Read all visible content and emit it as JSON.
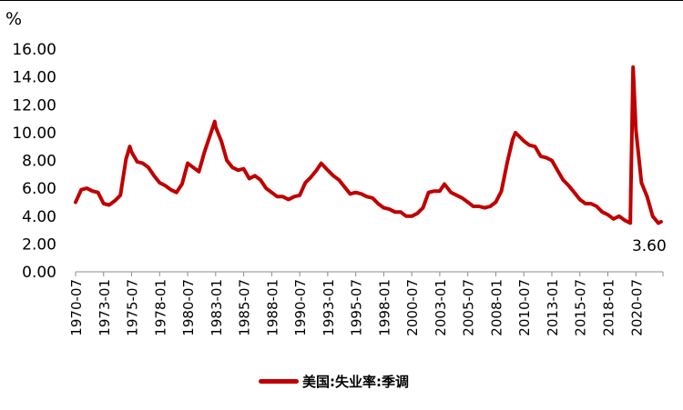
{
  "chart_data": {
    "type": "line",
    "unit_label": "%",
    "ylim": [
      0,
      16
    ],
    "y_ticks": [
      "0.00",
      "2.00",
      "4.00",
      "6.00",
      "8.00",
      "10.00",
      "12.00",
      "14.00",
      "16.00"
    ],
    "x_ticks": [
      "1970-07",
      "1973-01",
      "1975-07",
      "1978-01",
      "1980-07",
      "1983-01",
      "1985-07",
      "1988-01",
      "1990-07",
      "1993-01",
      "1995-07",
      "1998-01",
      "2000-07",
      "2003-01",
      "2005-07",
      "2008-01",
      "2010-07",
      "2013-01",
      "2015-07",
      "2018-01",
      "2020-07"
    ],
    "grid": false,
    "legend_position": "bottom",
    "series": [
      {
        "name": "美国:失业率:季调",
        "color": "#C00000",
        "x": [
          "1970-07",
          "1971-01",
          "1971-07",
          "1972-01",
          "1972-07",
          "1973-01",
          "1973-07",
          "1974-01",
          "1974-07",
          "1975-01",
          "1975-05",
          "1975-07",
          "1976-01",
          "1976-07",
          "1977-01",
          "1977-07",
          "1978-01",
          "1978-07",
          "1979-01",
          "1979-07",
          "1980-01",
          "1980-07",
          "1981-01",
          "1981-07",
          "1982-01",
          "1982-07",
          "1982-12",
          "1983-01",
          "1983-07",
          "1984-01",
          "1984-07",
          "1985-01",
          "1985-07",
          "1986-01",
          "1986-07",
          "1987-01",
          "1987-07",
          "1988-01",
          "1988-07",
          "1989-01",
          "1989-07",
          "1990-01",
          "1990-07",
          "1991-01",
          "1991-07",
          "1992-01",
          "1992-06",
          "1993-01",
          "1993-07",
          "1994-01",
          "1994-07",
          "1995-01",
          "1995-07",
          "1996-01",
          "1996-07",
          "1997-01",
          "1997-07",
          "1998-01",
          "1998-07",
          "1999-01",
          "1999-07",
          "2000-01",
          "2000-07",
          "2001-01",
          "2001-07",
          "2002-01",
          "2002-07",
          "2003-01",
          "2003-06",
          "2004-01",
          "2004-07",
          "2005-01",
          "2005-07",
          "2006-01",
          "2006-07",
          "2007-01",
          "2007-07",
          "2008-01",
          "2008-07",
          "2009-01",
          "2009-07",
          "2009-10",
          "2010-01",
          "2010-07",
          "2011-01",
          "2011-07",
          "2012-01",
          "2012-07",
          "2013-01",
          "2013-07",
          "2014-01",
          "2014-07",
          "2015-01",
          "2015-07",
          "2016-01",
          "2016-07",
          "2017-01",
          "2017-07",
          "2018-01",
          "2018-07",
          "2019-01",
          "2019-07",
          "2020-01",
          "2020-04",
          "2020-07",
          "2021-01",
          "2021-07",
          "2022-01",
          "2022-07",
          "2022-10"
        ],
        "values": [
          5.0,
          5.9,
          6.0,
          5.8,
          5.7,
          4.9,
          4.8,
          5.1,
          5.5,
          8.1,
          9.0,
          8.6,
          7.9,
          7.8,
          7.5,
          6.9,
          6.4,
          6.2,
          5.9,
          5.7,
          6.3,
          7.8,
          7.5,
          7.2,
          8.6,
          9.8,
          10.8,
          10.4,
          9.4,
          8.0,
          7.5,
          7.3,
          7.4,
          6.7,
          6.9,
          6.6,
          6.0,
          5.7,
          5.4,
          5.4,
          5.2,
          5.4,
          5.5,
          6.4,
          6.8,
          7.3,
          7.8,
          7.3,
          6.9,
          6.6,
          6.1,
          5.6,
          5.7,
          5.6,
          5.4,
          5.3,
          4.9,
          4.6,
          4.5,
          4.3,
          4.3,
          4.0,
          4.0,
          4.2,
          4.6,
          5.7,
          5.8,
          5.8,
          6.3,
          5.7,
          5.5,
          5.3,
          5.0,
          4.7,
          4.7,
          4.6,
          4.7,
          5.0,
          5.8,
          7.8,
          9.5,
          10.0,
          9.8,
          9.4,
          9.1,
          9.0,
          8.3,
          8.2,
          8.0,
          7.3,
          6.6,
          6.2,
          5.7,
          5.2,
          4.9,
          4.9,
          4.7,
          4.3,
          4.1,
          3.8,
          4.0,
          3.7,
          3.5,
          14.7,
          10.2,
          6.4,
          5.4,
          4.0,
          3.5,
          3.6
        ]
      }
    ],
    "annotation": {
      "text": "3.60",
      "x": "2022-10",
      "y": 3.6
    }
  }
}
